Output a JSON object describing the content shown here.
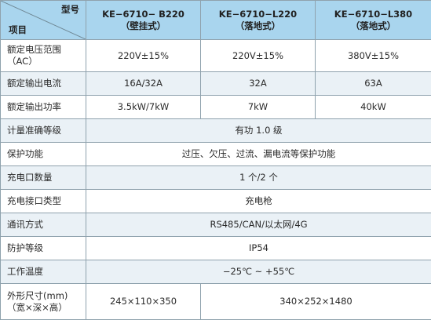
{
  "header": {
    "corner_top": "型号",
    "corner_bottom": "项目",
    "models": [
      {
        "name": "KE−6710− B220",
        "type": "（壁挂式）"
      },
      {
        "name": "KE−6710−L220",
        "type": "（落地式）"
      },
      {
        "name": "KE−6710−L380",
        "type": "（落地式）"
      }
    ]
  },
  "rows": [
    {
      "label": "额定电压范围",
      "label2": "（AC）",
      "values": [
        "220V±15%",
        "220V±15%",
        "380V±15%"
      ]
    },
    {
      "label": "额定输出电流",
      "values": [
        "16A/32A",
        "32A",
        "63A"
      ]
    },
    {
      "label": "额定输出功率",
      "values": [
        "3.5kW/7kW",
        "7kW",
        "40kW"
      ]
    },
    {
      "label": "计量准确等级",
      "span": "有功 1.0 级"
    },
    {
      "label": "保护功能",
      "span": "过压、欠压、过流、漏电流等保护功能"
    },
    {
      "label": "充电口数量",
      "span": "1 个/2 个"
    },
    {
      "label": "充电接口类型",
      "span": "充电枪"
    },
    {
      "label": "通讯方式",
      "span": "RS485/CAN/以太网/4G"
    },
    {
      "label": "防护等级",
      "span": "IP54"
    },
    {
      "label": "工作温度",
      "span": "−25℃ ~ +55℃"
    },
    {
      "label": "外形尺寸(mm)",
      "label2": "（宽×深×高）",
      "values": [
        "245×110×350",
        "340×252×1480"
      ]
    }
  ]
}
